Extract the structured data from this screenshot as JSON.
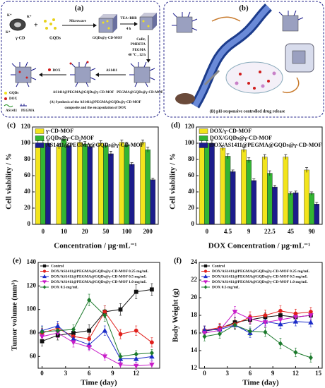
{
  "schemes": {
    "a": {
      "label": "(a)",
      "k_ion": "K⁺",
      "cd": "γ-CD",
      "gqds": "GQDs",
      "microwave": "Microwave",
      "mof": "GQDs@γ-CD-MOF",
      "step1": "TEA+BBB",
      "step1_time": "4 h",
      "catalyst": "CuBr,",
      "ligand": "PMDETA",
      "monomer": "PEGMA",
      "conditions": "40 °C , 12 h",
      "dox": "DOX",
      "aptamer": "AS1411",
      "product": "AS1411@PEGMA@GQDs@γ-CD-MOF",
      "intermediate": "PEGMA@GQDs@γ-CD-MOF",
      "legend": [
        "GQDs",
        "DOX",
        "AS1411",
        "PEGMA"
      ],
      "caption": [
        "(A) Synthesis of the AS1411@PEGMA@GQDs@γ-CD-MOF",
        "composite and the encapsulation of DOX"
      ]
    },
    "b": {
      "label": "(b)",
      "caption": "(B) pH-responsive controlled drug release"
    }
  },
  "chart_data": [
    {
      "type": "bar",
      "label": "(c)",
      "x_label": "Concentration / μg·mL⁻¹",
      "y_label": "Cell viability / %",
      "categories": [
        "0",
        "10",
        "20",
        "50",
        "100",
        "200"
      ],
      "series": [
        {
          "name": "γ-CD-MOF",
          "color": "#f2e41c",
          "values": [
            100,
            96,
            101,
            100,
            101,
            101
          ],
          "errors": [
            3,
            3,
            3,
            3,
            3,
            3
          ]
        },
        {
          "name": "GQDs@γ-CD-MOF",
          "color": "#33b533",
          "values": [
            100,
            105,
            99,
            97,
            98,
            92
          ],
          "errors": [
            3,
            3,
            3,
            3,
            3,
            3
          ]
        },
        {
          "name": "AS1411@PEGMA@GQDs@γ-CD-MOF",
          "color": "#1c1c8c",
          "values": [
            100,
            97,
            96,
            87,
            74,
            55
          ],
          "errors": [
            3,
            3,
            3,
            3,
            2,
            2
          ]
        }
      ],
      "ylim": [
        0,
        120
      ],
      "yticks": [
        0,
        20,
        40,
        60,
        80,
        100,
        120
      ]
    },
    {
      "type": "bar",
      "label": "(d)",
      "x_label": "DOX Concentration / μg·mL⁻¹",
      "y_label": "Cell viability / %",
      "categories": [
        "0",
        "4.5",
        "9",
        "22.5",
        "45",
        "90"
      ],
      "series": [
        {
          "name": "DOX/γ-CD-MOF",
          "color": "#f2e41c",
          "values": [
            100,
            94,
            92,
            83,
            83,
            67
          ],
          "errors": [
            3,
            3,
            3,
            3,
            3,
            3
          ]
        },
        {
          "name": "DOX/GQDs@γ-CD-MOF",
          "color": "#33b533",
          "values": [
            100,
            84,
            79,
            63,
            38,
            38
          ],
          "errors": [
            3,
            3,
            3,
            3,
            2,
            2
          ]
        },
        {
          "name": "DOX/AS1411@PEGMA@GQDs@γ-CD-MOF",
          "color": "#1c1c8c",
          "values": [
            100,
            65,
            54,
            46,
            39,
            25
          ],
          "errors": [
            3,
            2,
            2,
            2,
            2,
            2
          ]
        }
      ],
      "ylim": [
        0,
        120
      ],
      "yticks": [
        0,
        20,
        40,
        60,
        80,
        100,
        120
      ]
    },
    {
      "type": "line",
      "label": "(e)",
      "x_label": "Time (day)",
      "y_label": "Tumor volume (mm³)",
      "x": [
        0,
        2,
        4,
        6,
        8,
        10,
        12,
        14
      ],
      "series": [
        {
          "name": "Control",
          "color": "#111111",
          "marker": "square",
          "values": [
            73,
            78,
            80,
            82,
            98,
            100,
            115,
            117
          ],
          "errors": [
            4,
            4,
            4,
            5,
            5,
            5,
            6,
            5
          ]
        },
        {
          "name": "DOX/AS1411@PEGMA@GQDs@γ-CD-MOF 0.25 mg/mL",
          "color": "#e0201c",
          "marker": "circle",
          "values": [
            80,
            84,
            77,
            75,
            98,
            79,
            82,
            72
          ],
          "errors": [
            4,
            4,
            4,
            4,
            5,
            4,
            4,
            4
          ]
        },
        {
          "name": "DOX/AS1411@PEGMA@GQDs@γ-CD-MOF 0.5 mg/mL",
          "color": "#1c2cc8",
          "marker": "triangle-up",
          "values": [
            82,
            86,
            75,
            70,
            82,
            58,
            58,
            60
          ],
          "errors": [
            4,
            4,
            4,
            4,
            4,
            3,
            3,
            3
          ]
        },
        {
          "name": "DOX/AS1411@PEGMA@GQDs@γ-CD-MOF 1.0 mg/mL",
          "color": "#c81cc8",
          "marker": "triangle-down",
          "values": [
            77,
            80,
            72,
            68,
            60,
            53,
            52,
            53
          ],
          "errors": [
            4,
            4,
            4,
            3,
            3,
            3,
            3,
            3
          ]
        },
        {
          "name": "DOX 0.5 mg/mL",
          "color": "#1c7a2c",
          "marker": "diamond",
          "values": [
            81,
            82,
            83,
            108,
            95,
            60,
            62,
            63
          ],
          "errors": [
            4,
            4,
            4,
            5,
            5,
            3,
            3,
            3
          ]
        }
      ],
      "xlim": [
        -0.5,
        15
      ],
      "xticks": [
        0,
        3,
        6,
        9,
        12
      ],
      "ylim": [
        50,
        140
      ],
      "yticks": [
        60,
        80,
        100,
        120,
        140
      ]
    },
    {
      "type": "line",
      "label": "(f)",
      "x_label": "Time (day)",
      "y_label": "Body Weight (g)",
      "x": [
        0,
        2,
        4,
        6,
        8,
        10,
        12,
        14
      ],
      "series": [
        {
          "name": "Control",
          "color": "#111111",
          "marker": "square",
          "values": [
            16.2,
            16.5,
            17.2,
            17.5,
            17.8,
            18.0,
            17.8,
            18.0
          ],
          "errors": [
            0.5,
            0.5,
            0.5,
            0.5,
            0.5,
            0.5,
            0.5,
            0.5
          ]
        },
        {
          "name": "DOX/AS1411@PEGMA@GQDs@γ-CD-MOF 0.25 mg/mL",
          "color": "#e0201c",
          "marker": "circle",
          "values": [
            16.3,
            16.6,
            17.0,
            17.8,
            18.0,
            18.5,
            18.2,
            18.4
          ],
          "errors": [
            0.5,
            0.5,
            0.5,
            0.6,
            0.6,
            0.6,
            0.5,
            0.5
          ]
        },
        {
          "name": "DOX/AS1411@PEGMA@GQDs@γ-CD-MOF 0.5 mg/mL",
          "color": "#1c2cc8",
          "marker": "triangle-up",
          "values": [
            16.3,
            16.4,
            16.9,
            16.0,
            17.3,
            17.0,
            17.3,
            17.2
          ],
          "errors": [
            0.5,
            0.5,
            0.5,
            0.5,
            0.5,
            0.5,
            0.5,
            0.5
          ]
        },
        {
          "name": "DOX/AS1411@PEGMA@GQDs@γ-CD-MOF 1.0 mg/mL",
          "color": "#c81cc8",
          "marker": "triangle-down",
          "values": [
            16.0,
            16.3,
            18.4,
            17.6,
            17.2,
            17.5,
            17.8,
            18.0
          ],
          "errors": [
            0.5,
            0.5,
            0.6,
            0.5,
            0.5,
            0.5,
            0.5,
            0.5
          ]
        },
        {
          "name": "DOX 0.5 mg/mL",
          "color": "#1c7a2c",
          "marker": "diamond",
          "values": [
            15.6,
            15.9,
            16.9,
            16.2,
            16.1,
            14.8,
            13.8,
            13.2
          ],
          "errors": [
            0.5,
            0.5,
            0.5,
            0.5,
            0.5,
            0.6,
            0.5,
            0.5
          ]
        }
      ],
      "xlim": [
        -0.7,
        15.5
      ],
      "xticks": [
        0,
        3,
        6,
        9,
        12,
        15
      ],
      "ylim": [
        12,
        24
      ],
      "yticks": [
        12,
        14,
        16,
        18,
        20,
        22,
        24
      ]
    }
  ]
}
